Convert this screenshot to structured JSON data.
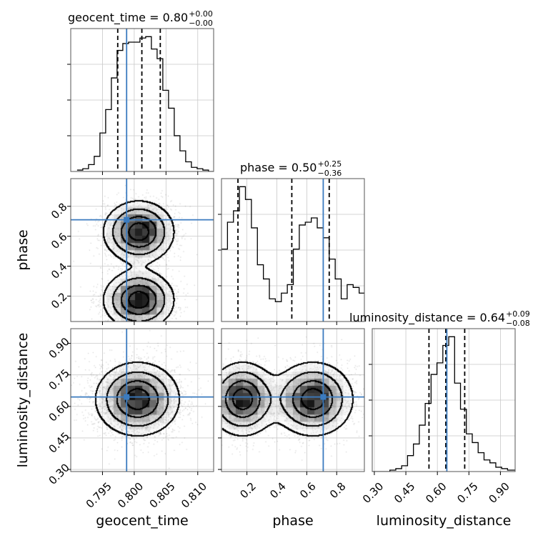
{
  "chart_data": {
    "type": "corner",
    "parameters": [
      "geocent_time",
      "phase",
      "luminosity_distance"
    ],
    "titles": {
      "geocent_time": {
        "label": "geocent_time",
        "value": "0.80",
        "plus": "+0.00",
        "minus": "−0.00"
      },
      "phase": {
        "label": "phase",
        "value": "0.50",
        "plus": "+0.25",
        "minus": "−0.36"
      },
      "luminosity_distance": {
        "label": "luminosity_distance",
        "value": "0.64",
        "plus": "+0.09",
        "minus": "−0.08"
      }
    },
    "axes": {
      "geocent_time": {
        "label": "geocent_time",
        "range": [
          0.79,
          0.8125
        ],
        "ticks": [
          0.795,
          0.8,
          0.805,
          0.81
        ],
        "tick_labels": [
          "0.795",
          "0.800",
          "0.805",
          "0.810"
        ]
      },
      "phase": {
        "label": "phase",
        "range": [
          0.03,
          0.985
        ],
        "ticks": [
          0.2,
          0.4,
          0.6,
          0.8
        ],
        "tick_labels": [
          "0.2",
          "0.4",
          "0.6",
          "0.8"
        ]
      },
      "luminosity_distance": {
        "label": "luminosity_distance",
        "range": [
          0.29,
          0.97
        ],
        "ticks": [
          0.3,
          0.45,
          0.6,
          0.75,
          0.9
        ],
        "tick_labels": [
          "0.30",
          "0.45",
          "0.60",
          "0.75",
          "0.90"
        ]
      }
    },
    "injection": {
      "geocent_time": 0.7988,
      "phase": 0.71,
      "luminosity_distance": 0.645
    },
    "quantiles": {
      "geocent_time": [
        0.7974,
        0.8012,
        0.8041
      ],
      "phase": [
        0.14,
        0.5,
        0.75
      ],
      "luminosity_distance": [
        0.56,
        0.64,
        0.73
      ]
    },
    "histograms": {
      "geocent_time": {
        "edges": [
          0.791,
          0.7919,
          0.7928,
          0.7937,
          0.7946,
          0.7955,
          0.7964,
          0.7973,
          0.7982,
          0.7991,
          0.8,
          0.8009,
          0.8018,
          0.8027,
          0.8036,
          0.8045,
          0.8054,
          0.8063,
          0.8072,
          0.8081,
          0.809,
          0.8099,
          0.8108,
          0.8117,
          0.8126
        ],
        "counts": [
          1,
          2,
          5,
          11,
          28,
          45,
          68,
          88,
          93,
          94,
          94,
          97,
          98,
          89,
          82,
          59,
          46,
          26,
          15,
          7,
          3,
          2,
          1,
          0
        ]
      },
      "phase": {
        "edges": [
          0.03,
          0.07,
          0.11,
          0.15,
          0.19,
          0.23,
          0.27,
          0.31,
          0.35,
          0.39,
          0.43,
          0.47,
          0.51,
          0.55,
          0.59,
          0.63,
          0.67,
          0.71,
          0.75,
          0.79,
          0.83,
          0.87,
          0.91,
          0.95,
          0.985
        ],
        "counts": [
          51,
          70,
          78,
          95,
          86,
          66,
          40,
          30,
          16,
          14,
          20,
          26,
          51,
          68,
          70,
          73,
          66,
          59,
          44,
          30,
          16,
          26,
          24,
          20
        ]
      },
      "luminosity_distance": {
        "edges": [
          0.29,
          0.318,
          0.346,
          0.374,
          0.402,
          0.43,
          0.458,
          0.486,
          0.514,
          0.542,
          0.57,
          0.598,
          0.626,
          0.654,
          0.682,
          0.71,
          0.738,
          0.766,
          0.794,
          0.822,
          0.85,
          0.878,
          0.906,
          0.934,
          0.97
        ],
        "counts": [
          0,
          0,
          0,
          1,
          2,
          4,
          11,
          19,
          32,
          47,
          67,
          75,
          87,
          93,
          61,
          43,
          26,
          20,
          13,
          8,
          6,
          3,
          2,
          1
        ]
      }
    },
    "joint": [
      {
        "x": "geocent_time",
        "y": "phase",
        "modes": [
          {
            "cx": 0.8007,
            "cy": 0.63,
            "sx": 0.0027,
            "sy": 0.1,
            "w": 1.0
          },
          {
            "cx": 0.8007,
            "cy": 0.175,
            "sx": 0.0027,
            "sy": 0.095,
            "w": 1.0
          }
        ]
      },
      {
        "x": "geocent_time",
        "y": "luminosity_distance",
        "modes": [
          {
            "cx": 0.8005,
            "cy": 0.635,
            "sx": 0.0032,
            "sy": 0.085,
            "w": 1.0
          }
        ]
      },
      {
        "x": "phase",
        "y": "luminosity_distance",
        "modes": [
          {
            "cx": 0.17,
            "cy": 0.635,
            "sx": 0.11,
            "sy": 0.085,
            "w": 1.0
          },
          {
            "cx": 0.64,
            "cy": 0.635,
            "sx": 0.13,
            "sy": 0.085,
            "w": 1.0
          }
        ]
      }
    ],
    "grid": true,
    "style": {
      "injection_color": "#3b7bbf",
      "line_color": "#000000",
      "grid_color": "#c8c8c8"
    }
  }
}
